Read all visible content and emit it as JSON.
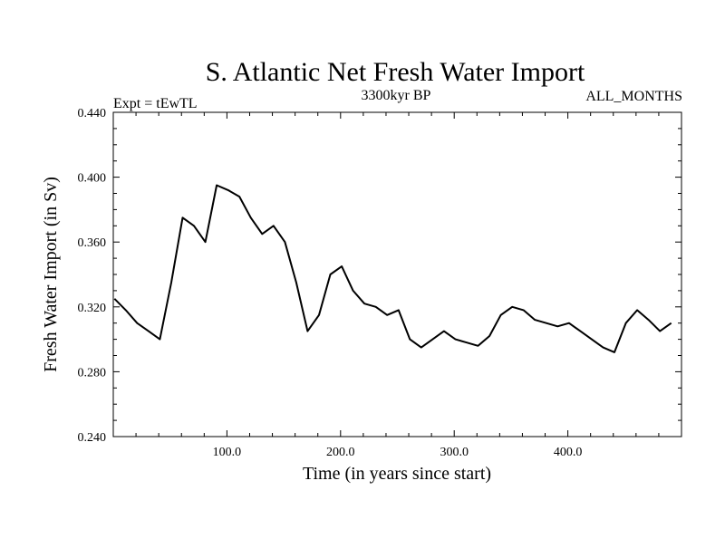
{
  "chart_data": {
    "type": "line",
    "title": "S. Atlantic Net Fresh Water Import",
    "subtitle_left": "Expt = tEwTL",
    "subtitle_center": "3300kyr BP",
    "subtitle_right": "ALL_MONTHS",
    "xlabel": "Time (in years since start)",
    "ylabel": "Fresh Water Import (in Sv)",
    "xlim": [
      0,
      500
    ],
    "ylim": [
      0.24,
      0.44
    ],
    "xticks": [
      100,
      200,
      300,
      400
    ],
    "xtick_labels": [
      "100.0",
      "200.0",
      "300.0",
      "400.0"
    ],
    "yticks": [
      0.24,
      0.28,
      0.32,
      0.36,
      0.4,
      0.44
    ],
    "ytick_labels": [
      "0.240",
      "0.280",
      "0.320",
      "0.360",
      "0.400",
      "0.440"
    ],
    "grid": false,
    "series": [
      {
        "name": "Fresh Water Import",
        "color": "#000000",
        "x_start": 1,
        "x_step": 10,
        "values": [
          0.325,
          0.318,
          0.31,
          0.305,
          0.3,
          0.335,
          0.375,
          0.37,
          0.36,
          0.395,
          0.392,
          0.388,
          0.375,
          0.365,
          0.37,
          0.36,
          0.335,
          0.305,
          0.315,
          0.34,
          0.345,
          0.33,
          0.322,
          0.32,
          0.315,
          0.318,
          0.3,
          0.295,
          0.3,
          0.305,
          0.3,
          0.298,
          0.296,
          0.302,
          0.315,
          0.32,
          0.318,
          0.312,
          0.31,
          0.308,
          0.31,
          0.305,
          0.3,
          0.295,
          0.292,
          0.31,
          0.318,
          0.312,
          0.305,
          0.31
        ]
      }
    ]
  }
}
